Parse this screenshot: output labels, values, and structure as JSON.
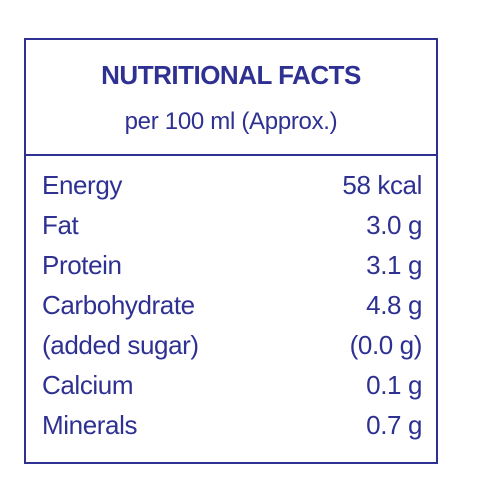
{
  "header": {
    "title": "NUTRITIONAL FACTS",
    "subtitle": "per 100 ml (Approx.)"
  },
  "table": {
    "rows": [
      [
        "Energy",
        "58 kcal"
      ],
      [
        "Fat",
        "3.0 g"
      ],
      [
        "Protein",
        "3.1 g"
      ],
      [
        "Carbohydrate",
        "4.8 g"
      ],
      [
        "(added sugar)",
        "(0.0 g)"
      ],
      [
        "Calcium",
        "0.1 g"
      ],
      [
        "Minerals",
        "0.7 g"
      ]
    ]
  }
}
